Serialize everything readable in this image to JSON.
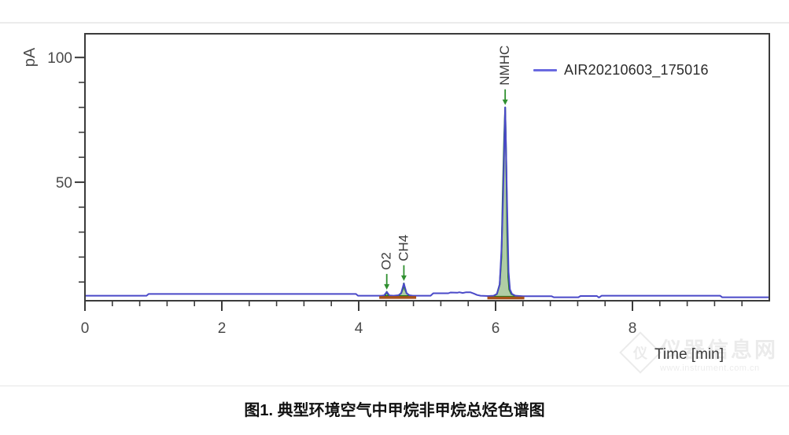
{
  "page": {
    "caption": "图1. 典型环境空气中甲烷非甲烷总烃色谱图",
    "watermark": {
      "logo_glyph": "仪",
      "site_name": "仪器信息网",
      "site_url": "www.instrument.com.cn"
    }
  },
  "chart_data": {
    "type": "line",
    "title": "",
    "xlabel": "Time [min]",
    "ylabel": "pA",
    "x_range": [
      0,
      10
    ],
    "y_range": [
      2.5,
      109.5
    ],
    "x_major_ticks": [
      0,
      2,
      4,
      6,
      8
    ],
    "x_minor_step": 0.4,
    "y_major_ticks": [
      50,
      100
    ],
    "y_minor_step": 10,
    "grid": "off",
    "legend": {
      "position": "top-right",
      "entries": [
        {
          "label": "AIR20210603_175016",
          "color": "#6a6ae0"
        }
      ]
    },
    "series": [
      {
        "name": "AIR20210603_175016",
        "color": "#4a49c8",
        "points": [
          [
            0.0,
            4.5
          ],
          [
            0.9,
            4.5
          ],
          [
            0.93,
            5.2
          ],
          [
            3.96,
            5.2
          ],
          [
            3.99,
            4.5
          ],
          [
            4.33,
            4.5
          ],
          [
            4.37,
            4.6
          ],
          [
            4.41,
            6.0
          ],
          [
            4.45,
            4.6
          ],
          [
            4.51,
            4.5
          ],
          [
            4.58,
            4.7
          ],
          [
            4.62,
            5.5
          ],
          [
            4.66,
            9.4
          ],
          [
            4.7,
            5.5
          ],
          [
            4.74,
            4.7
          ],
          [
            4.79,
            4.5
          ],
          [
            5.05,
            4.5
          ],
          [
            5.09,
            5.5
          ],
          [
            5.31,
            5.5
          ],
          [
            5.34,
            5.8
          ],
          [
            5.44,
            5.7
          ],
          [
            5.47,
            5.9
          ],
          [
            5.52,
            5.6
          ],
          [
            5.57,
            5.9
          ],
          [
            5.63,
            5.9
          ],
          [
            5.68,
            5.4
          ],
          [
            5.73,
            4.8
          ],
          [
            5.78,
            4.5
          ],
          [
            5.89,
            4.4
          ],
          [
            5.97,
            4.5
          ],
          [
            6.02,
            5.2
          ],
          [
            6.06,
            9.0
          ],
          [
            6.09,
            25.0
          ],
          [
            6.11,
            45.0
          ],
          [
            6.14,
            80.0
          ],
          [
            6.165,
            45.0
          ],
          [
            6.19,
            14.0
          ],
          [
            6.21,
            7.0
          ],
          [
            6.24,
            5.2
          ],
          [
            6.29,
            4.5
          ],
          [
            6.4,
            4.3
          ],
          [
            6.82,
            4.3
          ],
          [
            6.85,
            3.9
          ],
          [
            7.21,
            3.9
          ],
          [
            7.24,
            4.4
          ],
          [
            7.48,
            4.4
          ],
          [
            7.51,
            3.8
          ],
          [
            7.55,
            4.5
          ],
          [
            9.28,
            4.5
          ],
          [
            9.31,
            3.9
          ],
          [
            10.0,
            3.9
          ]
        ]
      }
    ],
    "peaks": [
      {
        "name": "O2",
        "retention_min": 4.41,
        "apex_pA": 6.0,
        "baseline_pA": 4.1,
        "outline": [
          [
            4.33,
            4.4
          ],
          [
            4.37,
            4.55
          ],
          [
            4.39,
            4.9
          ],
          [
            4.41,
            6.1
          ],
          [
            4.43,
            4.9
          ],
          [
            4.45,
            4.55
          ],
          [
            4.49,
            4.4
          ]
        ]
      },
      {
        "name": "CH4",
        "retention_min": 4.66,
        "apex_pA": 9.5,
        "baseline_pA": 4.1,
        "outline": [
          [
            4.51,
            4.4
          ],
          [
            4.58,
            4.6
          ],
          [
            4.62,
            5.5
          ],
          [
            4.645,
            7.2
          ],
          [
            4.66,
            9.5
          ],
          [
            4.675,
            7.2
          ],
          [
            4.7,
            5.5
          ],
          [
            4.74,
            4.6
          ],
          [
            4.79,
            4.4
          ]
        ]
      },
      {
        "name": "NMHC",
        "retention_min": 6.14,
        "apex_pA": 80.0,
        "baseline_pA": 3.9,
        "outline": [
          [
            5.89,
            4.1
          ],
          [
            5.97,
            4.4
          ],
          [
            6.02,
            5.2
          ],
          [
            6.06,
            9.0
          ],
          [
            6.085,
            20.0
          ],
          [
            6.105,
            45.0
          ],
          [
            6.125,
            68.0
          ],
          [
            6.14,
            80.0
          ],
          [
            6.155,
            60.0
          ],
          [
            6.17,
            30.0
          ],
          [
            6.185,
            12.0
          ],
          [
            6.2,
            7.0
          ],
          [
            6.23,
            5.2
          ],
          [
            6.28,
            4.5
          ],
          [
            6.41,
            4.1
          ]
        ]
      }
    ],
    "integration_baselines": [
      {
        "t_start": 4.3,
        "t_end": 4.84,
        "pA": 4.1
      },
      {
        "t_start": 5.88,
        "t_end": 6.42,
        "pA": 3.9
      }
    ],
    "colors": {
      "peak_fill": "#9cc08f",
      "peak_stroke": "#1e7a1e",
      "marker_arrow": "#2f8f2f",
      "baseline_marker": "#a8521a",
      "axis": "#3b3b3b",
      "tick_label": "#4a4a4a",
      "peak_label": "#3c3c3c"
    }
  }
}
